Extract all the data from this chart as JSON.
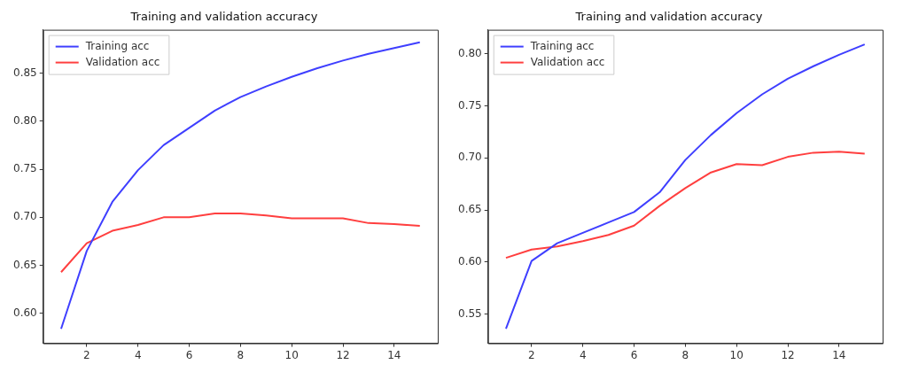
{
  "chart_data": [
    {
      "type": "line",
      "title": "Training and validation accuracy",
      "x": [
        1,
        2,
        3,
        4,
        5,
        6,
        7,
        8,
        9,
        10,
        11,
        12,
        13,
        14,
        15
      ],
      "xlim": [
        0.3,
        15.7
      ],
      "xticks": [
        2,
        4,
        6,
        8,
        10,
        12,
        14
      ],
      "ylim": [
        0.569,
        0.895
      ],
      "yticks": [
        {
          "value": 0.6,
          "label": "0.60"
        },
        0.65,
        {
          "value": 0.7,
          "label": "0.70"
        },
        0.75,
        {
          "value": 0.8,
          "label": "0.80"
        },
        0.85
      ],
      "grid": false,
      "legend": "top left",
      "series": [
        {
          "name": "Training acc",
          "color": "#3f3fff",
          "values": [
            0.584,
            0.665,
            0.716,
            0.749,
            0.775,
            0.793,
            0.811,
            0.825,
            0.836,
            0.846,
            0.855,
            0.863,
            0.87,
            0.876,
            0.882
          ]
        },
        {
          "name": "Validation acc",
          "color": "#ff3f3f",
          "values": [
            0.643,
            0.673,
            0.686,
            0.692,
            0.7,
            0.7,
            0.704,
            0.704,
            0.702,
            0.699,
            0.699,
            0.699,
            0.694,
            0.693,
            0.691
          ]
        }
      ]
    },
    {
      "type": "line",
      "title": "Training and validation accuracy",
      "x": [
        1,
        2,
        3,
        4,
        5,
        6,
        7,
        8,
        9,
        10,
        11,
        12,
        13,
        14,
        15
      ],
      "xlim": [
        0.3,
        15.7
      ],
      "xticks": [
        2,
        4,
        6,
        8,
        10,
        12,
        14
      ],
      "ylim": [
        0.522,
        0.823
      ],
      "yticks": [
        0.55,
        {
          "value": 0.6,
          "label": "0.60"
        },
        0.65,
        {
          "value": 0.7,
          "label": "0.70"
        },
        0.75,
        {
          "value": 0.8,
          "label": "0.80"
        }
      ],
      "grid": false,
      "legend": "top left",
      "series": [
        {
          "name": "Training acc",
          "color": "#3f3fff",
          "values": [
            0.536,
            0.601,
            0.618,
            0.628,
            0.638,
            0.648,
            0.667,
            0.698,
            0.722,
            0.743,
            0.761,
            0.776,
            0.788,
            0.799,
            0.809
          ]
        },
        {
          "name": "Validation acc",
          "color": "#ff3f3f",
          "values": [
            0.604,
            0.612,
            0.615,
            0.62,
            0.626,
            0.635,
            0.654,
            0.671,
            0.686,
            0.694,
            0.693,
            0.701,
            0.705,
            0.706,
            0.704
          ]
        }
      ]
    }
  ]
}
